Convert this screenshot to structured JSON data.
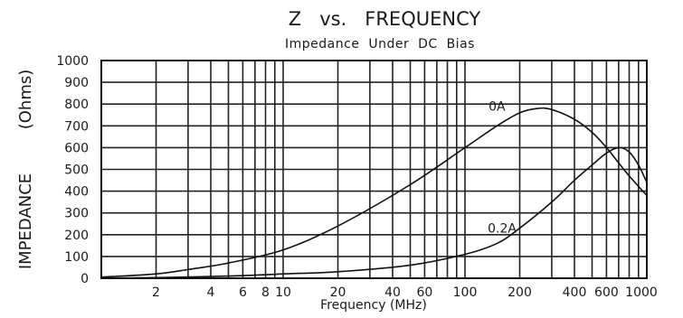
{
  "chart_data": {
    "type": "line",
    "title": "Z   vs.   FREQUENCY",
    "subtitle": "Impedance  Under  DC  Bias",
    "ylabel_main": "IMPEDANCE",
    "ylabel_unit": "(Ohms)",
    "xlabel": "Frequency (MHz)",
    "x_scale": "log",
    "xlim": [
      1,
      1000
    ],
    "ylim": [
      0,
      1000
    ],
    "grid": true,
    "y_ticks": [
      0,
      100,
      200,
      300,
      400,
      500,
      600,
      700,
      800,
      900,
      1000
    ],
    "x_tick_labels": [
      {
        "value": 2,
        "label": "2"
      },
      {
        "value": 4,
        "label": "4"
      },
      {
        "value": 6,
        "label": "6"
      },
      {
        "value": 8,
        "label": "8"
      },
      {
        "value": 10,
        "label": "10"
      },
      {
        "value": 20,
        "label": "20"
      },
      {
        "value": 40,
        "label": "40"
      },
      {
        "value": 60,
        "label": "60"
      },
      {
        "value": 100,
        "label": "100"
      },
      {
        "value": 200,
        "label": "200"
      },
      {
        "value": 400,
        "label": "400"
      },
      {
        "value": 600,
        "label": "600"
      },
      {
        "value": 1000,
        "label": "1000"
      }
    ],
    "x_minor_grid": [
      2,
      3,
      4,
      5,
      6,
      7,
      8,
      9,
      10,
      20,
      30,
      40,
      50,
      60,
      70,
      80,
      90,
      100,
      200,
      300,
      400,
      500,
      600,
      700,
      800,
      900
    ],
    "series": [
      {
        "name": "0A",
        "label_at": {
          "x": 150,
          "y": 770
        },
        "x": [
          1,
          2,
          3,
          5,
          10,
          20,
          50,
          100,
          150,
          200,
          250,
          300,
          400,
          500,
          600,
          700,
          800,
          1000
        ],
        "y": [
          5,
          20,
          40,
          70,
          130,
          240,
          430,
          600,
          700,
          760,
          780,
          775,
          730,
          670,
          600,
          530,
          470,
          380
        ]
      },
      {
        "name": "0.2A",
        "label_at": {
          "x": 160,
          "y": 210
        },
        "x": [
          1,
          2,
          5,
          10,
          20,
          50,
          100,
          150,
          200,
          300,
          400,
          500,
          600,
          700,
          800,
          900,
          1000
        ],
        "y": [
          0,
          3,
          10,
          20,
          30,
          60,
          110,
          160,
          230,
          350,
          450,
          520,
          575,
          600,
          580,
          520,
          440
        ]
      }
    ]
  }
}
